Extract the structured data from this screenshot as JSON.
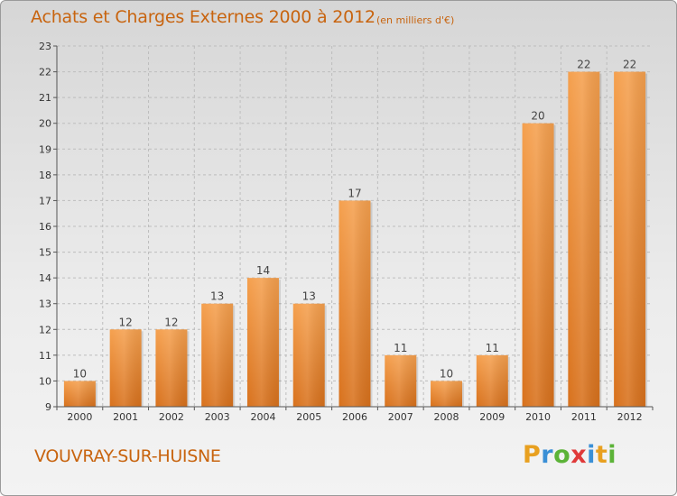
{
  "chart_data": {
    "type": "bar",
    "title": "Achats et Charges Externes 2000 à 2012",
    "subtitle": "(en milliers d'€)",
    "categories": [
      "2000",
      "2001",
      "2002",
      "2003",
      "2004",
      "2005",
      "2006",
      "2007",
      "2008",
      "2009",
      "2010",
      "2011",
      "2012"
    ],
    "values": [
      10,
      12,
      12,
      13,
      14,
      13,
      17,
      11,
      10,
      11,
      20,
      22,
      22
    ],
    "ylim": [
      9,
      23
    ],
    "yticks": [
      9,
      10,
      11,
      12,
      13,
      14,
      15,
      16,
      17,
      18,
      19,
      20,
      21,
      22,
      23
    ],
    "grid": true,
    "bar_color": "#e8832a",
    "xlabel": "",
    "ylabel": ""
  },
  "footer": {
    "place": "VOUVRAY-SUR-HUISNE",
    "logo_letters": [
      "P",
      "r",
      "o",
      "x",
      "i",
      "t",
      "i"
    ],
    "logo_colors": [
      "#e8a020",
      "#3a8fd6",
      "#5cb338",
      "#e03a3a",
      "#3a8fd6",
      "#e8a020",
      "#5cb338"
    ]
  }
}
